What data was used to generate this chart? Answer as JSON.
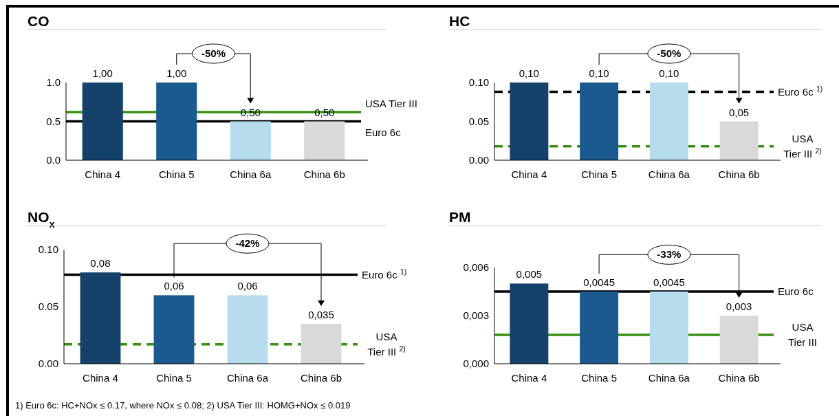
{
  "chart_data": [
    {
      "type": "bar",
      "title": "CO",
      "categories": [
        "China 4",
        "China 5",
        "China 6a",
        "China 6b"
      ],
      "values": [
        1.0,
        1.0,
        0.5,
        0.5
      ],
      "value_labels": [
        "1,00",
        "1,00",
        "0,50",
        "0,50"
      ],
      "colors": [
        "#15426a",
        "#1a5a8e",
        "#b7dcee",
        "#d9d9d9"
      ],
      "ylim": [
        0,
        1
      ],
      "yticks": [
        {
          "value": 0,
          "label": "0.0"
        },
        {
          "value": 0.5,
          "label": "0.5"
        },
        {
          "value": 1,
          "label": "1.0"
        }
      ],
      "ref_lines": [
        {
          "axis": "y",
          "value": 0.62,
          "label": "USA Tier III",
          "color": "#3a9010",
          "line_style": "solid"
        },
        {
          "axis": "y",
          "value": 0.5,
          "label": "Euro 6c",
          "color": "#000000",
          "line_style": "solid"
        }
      ],
      "annotations": [
        "-50%"
      ]
    },
    {
      "type": "bar",
      "title": "HC",
      "categories": [
        "China 4",
        "China 5",
        "China 6a",
        "China 6b"
      ],
      "values": [
        0.1,
        0.1,
        0.1,
        0.05
      ],
      "value_labels": [
        "0,10",
        "0,10",
        "0,10",
        "0,05"
      ],
      "colors": [
        "#15426a",
        "#1a5a8e",
        "#b7dcee",
        "#d9d9d9"
      ],
      "ylim": [
        0,
        0.1
      ],
      "yticks": [
        {
          "value": 0,
          "label": "0.00"
        },
        0.05,
        {
          "value": 0.1,
          "label": "0.10"
        }
      ],
      "ref_lines": [
        {
          "axis": "y",
          "value": 0.088,
          "label": "Euro 6c $^{1)}$",
          "color": "#000000",
          "line_style": "dashed"
        },
        {
          "axis": "y",
          "value": 0.018,
          "label": "USA Tier III $^{2)}$",
          "color": "#3a9010",
          "line_style": "dashed"
        }
      ],
      "annotations": [
        "-50%"
      ]
    },
    {
      "type": "bar",
      "title": "NO$_{x}$",
      "categories": [
        "China 4",
        "China 5",
        "China 6a",
        "China 6b"
      ],
      "values": [
        0.08,
        0.06,
        0.06,
        0.035
      ],
      "value_labels": [
        "0,08",
        "0,06",
        "0,06",
        "0,035"
      ],
      "colors": [
        "#15426a",
        "#1a5a8e",
        "#b7dcee",
        "#d9d9d9"
      ],
      "ylim": [
        0,
        0.1
      ],
      "yticks": [
        {
          "value": 0,
          "label": "0.00"
        },
        0.05,
        {
          "value": 0.1,
          "label": "0.10"
        }
      ],
      "ref_lines": [
        {
          "axis": "y",
          "value": 0.078,
          "label": "Euro 6c $^{1)}$",
          "color": "#000000",
          "line_style": "solid"
        },
        {
          "axis": "y",
          "value": 0.017,
          "label": "USA Tier III $^{2)}$",
          "color": "#3a9010",
          "line_style": "dashed"
        }
      ],
      "annotations": [
        "-42%",
        "1) Euro 6c: HC+NOx ≤ 0.17, where NOx ≤ 0.08; 2) USA Tier III: HOMG+NOx ≤ 0.019"
      ]
    },
    {
      "type": "bar",
      "title": "PM",
      "categories": [
        "China 4",
        "China 5",
        "China 6a",
        "China 6b"
      ],
      "values": [
        0.005,
        0.0045,
        0.0045,
        0.003
      ],
      "value_labels": [
        "0,005",
        "0,0045",
        "0,0045",
        "0,003"
      ],
      "colors": [
        "#15426a",
        "#1a5a8e",
        "#b7dcee",
        "#d9d9d9"
      ],
      "ylim": [
        0,
        0.006
      ],
      "yticks": [
        {
          "value": 0,
          "label": "0,000"
        },
        {
          "value": 0.003,
          "label": "0,003"
        },
        {
          "value": 0.006,
          "label": "0,006"
        }
      ],
      "ref_lines": [
        {
          "axis": "y",
          "value": 0.0045,
          "label": "Euro 6c",
          "color": "#000000",
          "line_style": "solid"
        },
        {
          "axis": "y",
          "value": 0.0018,
          "label": "USA Tier III",
          "color": "#3a9010",
          "line_style": "solid"
        }
      ],
      "annotations": [
        "-33%"
      ]
    }
  ]
}
